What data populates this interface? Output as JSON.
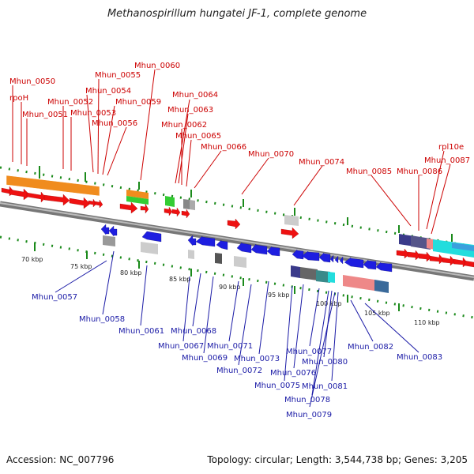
{
  "title": "Methanospirillum hungatei JF-1, complete genome",
  "footer": {
    "accession": "Accession: NC_007796",
    "topology": "Topology: circular; Length: 3,544,738 bp; Genes: 3,205"
  },
  "colors": {
    "forward_label": "#cc0000",
    "reverse_label": "#1a1aa6",
    "backbone": "#888888",
    "tick": "#1a8a1a",
    "forward_gene": "#ee1111",
    "reverse_gene": "#1e1ee0",
    "cog_orange": "#f08c1e",
    "cog_green": "#33cc33",
    "cog_cyan": "#22dddd",
    "cog_navy": "#3a3a8a",
    "cog_salmon": "#ee8888",
    "cog_grey": "#999999"
  },
  "axis": {
    "ticks": [
      "70 kbp",
      "75 kbp",
      "80 kbp",
      "85 kbp",
      "90 kbp",
      "95 kbp",
      "100 kbp",
      "105 kbp",
      "110 kbp"
    ]
  },
  "top_labels": [
    "Mhun_0050",
    "rpoH",
    "Mhun_0051",
    "Mhun_0052",
    "Mhun_0053",
    "Mhun_0054",
    "Mhun_0055",
    "Mhun_0056",
    "Mhun_0059",
    "Mhun_0060",
    "Mhun_0064",
    "Mhun_0063",
    "Mhun_0062",
    "Mhun_0065",
    "Mhun_0066",
    "Mhun_0070",
    "Mhun_0074",
    "Mhun_0085",
    "Mhun_0086",
    "Mhun_0087",
    "rpl10e"
  ],
  "bottom_labels": [
    "Mhun_0057",
    "Mhun_0058",
    "Mhun_0061",
    "Mhun_0068",
    "Mhun_0067",
    "Mhun_0069",
    "Mhun_0071",
    "Mhun_0073",
    "Mhun_0072",
    "Mhun_0077",
    "Mhun_0076",
    "Mhun_0080",
    "Mhun_0075",
    "Mhun_0081",
    "Mhun_0078",
    "Mhun_0079",
    "Mhun_0082",
    "Mhun_0083"
  ]
}
